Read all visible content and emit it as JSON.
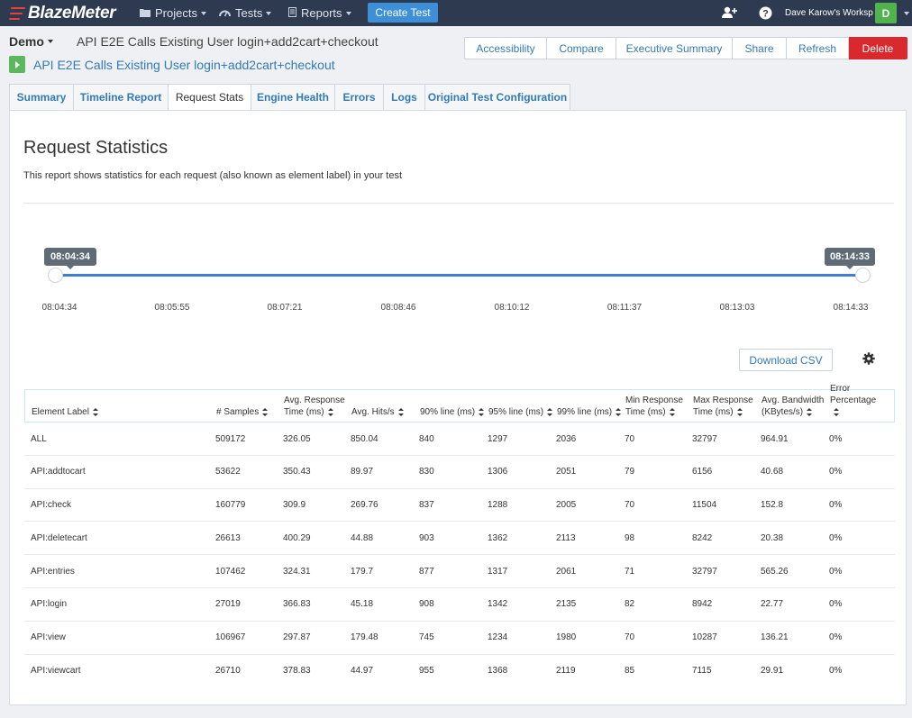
{
  "nav": {
    "logo": "BlazeMeter",
    "projects": "Projects",
    "tests": "Tests",
    "reports": "Reports",
    "create_test": "Create Test",
    "workspace": "Dave Karow's Worksp",
    "avatar_initial": "D"
  },
  "header": {
    "workspace_label": "Demo",
    "breadcrumb_title": "API E2E Calls Existing User login+add2cart+checkout",
    "test_title": "API E2E Calls Existing User login+add2cart+checkout",
    "actions": [
      "Accessibility",
      "Compare",
      "Executive Summary",
      "Share",
      "Refresh",
      "Delete"
    ]
  },
  "tabs": [
    "Summary",
    "Timeline Report",
    "Request Stats",
    "Engine Health",
    "Errors",
    "Logs",
    "Original Test Configuration"
  ],
  "active_tab": "Request Stats",
  "panel": {
    "title": "Request Statistics",
    "description": "This report shows statistics for each request (also known as element label) in your test"
  },
  "slider": {
    "start": "08:04:34",
    "end": "08:14:33",
    "ticks": [
      "08:04:34",
      "08:05:55",
      "08:07:21",
      "08:08:46",
      "08:10:12",
      "08:11:37",
      "08:13:03",
      "08:14:33"
    ]
  },
  "download_csv": "Download CSV",
  "table": {
    "headers": [
      {
        "l1": "",
        "l2": "Element Label"
      },
      {
        "l1": "",
        "l2": "# Samples"
      },
      {
        "l1": "Avg. Response",
        "l2": "Time (ms)"
      },
      {
        "l1": "",
        "l2": "Avg. Hits/s"
      },
      {
        "l1": "",
        "l2": "90% line (ms)"
      },
      {
        "l1": "",
        "l2": "95% line (ms)"
      },
      {
        "l1": "",
        "l2": "99% line (ms)"
      },
      {
        "l1": "Min Response",
        "l2": "Time (ms)"
      },
      {
        "l1": "Max Response",
        "l2": "Time (ms)"
      },
      {
        "l1": "Avg. Bandwidth",
        "l2": "(KBytes/s)"
      },
      {
        "l1": "Error Percentage",
        "l2": ""
      }
    ],
    "rows": [
      [
        "ALL",
        "509172",
        "326.05",
        "850.04",
        "840",
        "1297",
        "2036",
        "70",
        "32797",
        "964.91",
        "0%"
      ],
      [
        "API:addtocart",
        "53622",
        "350.43",
        "89.97",
        "830",
        "1306",
        "2051",
        "79",
        "6156",
        "40.68",
        "0%"
      ],
      [
        "API:check",
        "160779",
        "309.9",
        "269.76",
        "837",
        "1288",
        "2005",
        "70",
        "11504",
        "152.8",
        "0%"
      ],
      [
        "API:deletecart",
        "26613",
        "400.29",
        "44.88",
        "903",
        "1362",
        "2113",
        "98",
        "8242",
        "20.38",
        "0%"
      ],
      [
        "API:entries",
        "107462",
        "324.31",
        "179.7",
        "877",
        "1317",
        "2061",
        "71",
        "32797",
        "565.26",
        "0%"
      ],
      [
        "API:login",
        "27019",
        "366.83",
        "45.18",
        "908",
        "1342",
        "2135",
        "82",
        "8942",
        "22.77",
        "0%"
      ],
      [
        "API:view",
        "106967",
        "297.87",
        "179.48",
        "745",
        "1234",
        "1980",
        "70",
        "10287",
        "136.21",
        "0%"
      ],
      [
        "API:viewcart",
        "26710",
        "378.83",
        "44.97",
        "955",
        "1368",
        "2119",
        "85",
        "7115",
        "29.91",
        "0%"
      ]
    ]
  },
  "colors": {
    "nav_bg": "#2e3a4f",
    "primary": "#337ab7",
    "delete": "#d9282e",
    "slider": "#3d7fd1",
    "play": "#5cb85c"
  }
}
